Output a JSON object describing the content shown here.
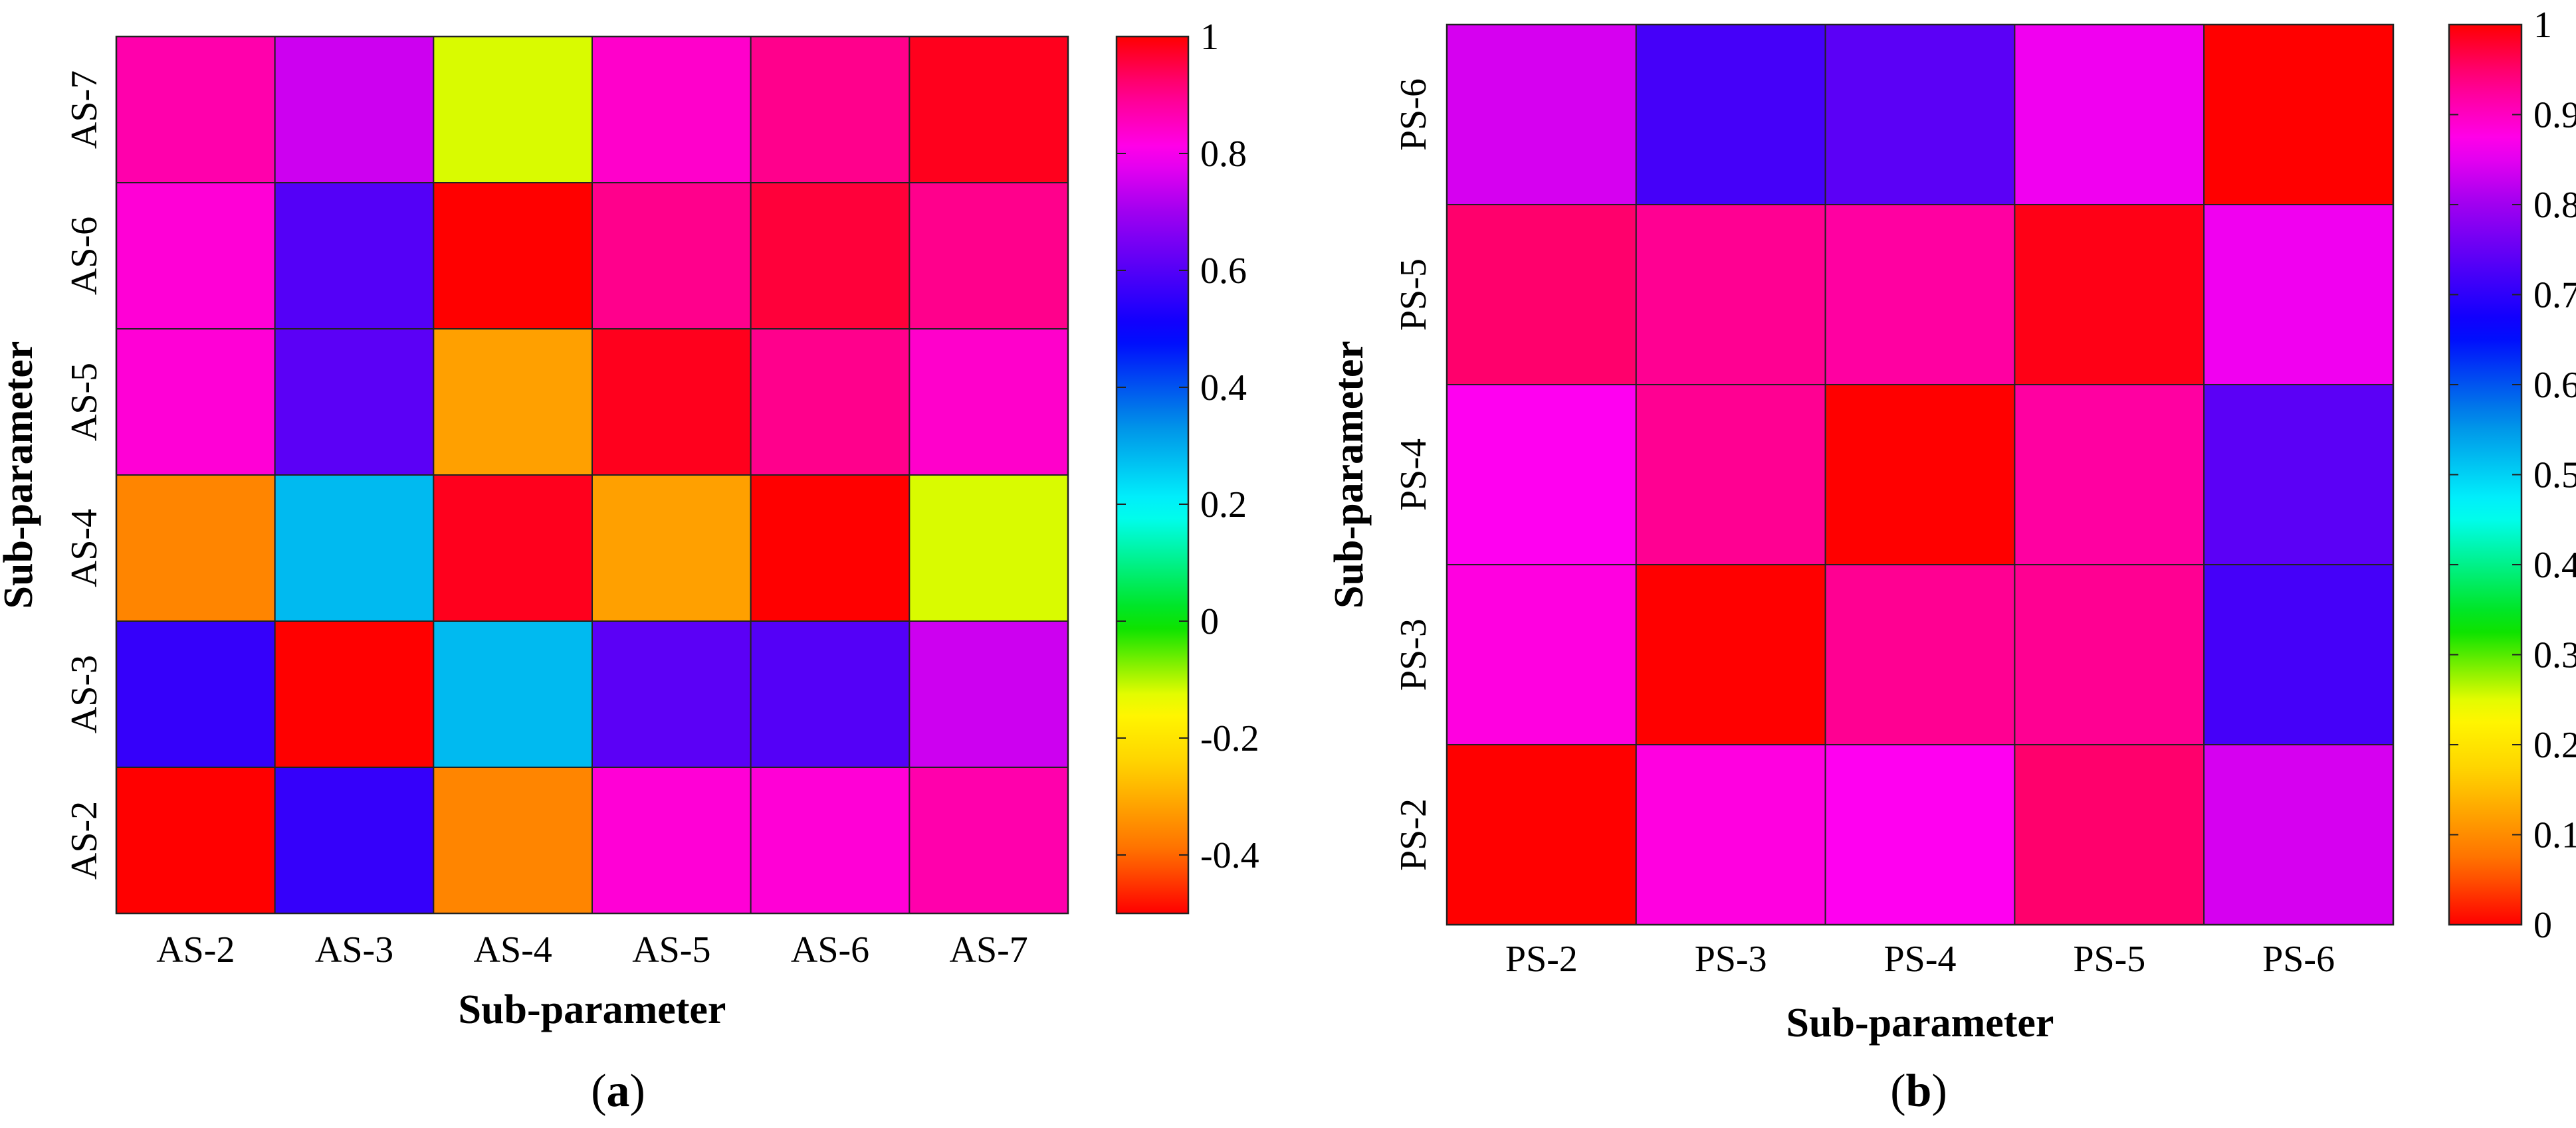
{
  "chart_data": [
    {
      "type": "heatmap",
      "panel_label": "a",
      "xlabel": "Sub-parameter",
      "ylabel": "Sub-parameter",
      "x_categories": [
        "AS-2",
        "AS-3",
        "AS-4",
        "AS-5",
        "AS-6",
        "AS-7"
      ],
      "y_categories": [
        "AS-2",
        "AS-3",
        "AS-4",
        "AS-5",
        "AS-6",
        "AS-7"
      ],
      "values": [
        [
          1.0,
          0.56,
          -0.36,
          0.83,
          0.83,
          0.87
        ],
        [
          0.56,
          1.0,
          0.28,
          0.61,
          0.6,
          0.75
        ],
        [
          -0.36,
          0.28,
          0.98,
          -0.32,
          1.0,
          -0.12
        ],
        [
          0.83,
          0.61,
          -0.32,
          0.98,
          0.9,
          0.84
        ],
        [
          0.83,
          0.6,
          1.0,
          0.9,
          0.96,
          0.9
        ],
        [
          0.87,
          0.75,
          -0.12,
          0.84,
          0.9,
          0.98
        ]
      ],
      "colorbar": {
        "min": -0.5,
        "max": 1.0,
        "ticks": [
          "1",
          "0.8",
          "0.6",
          "0.4",
          "0.2",
          "0",
          "-0.2",
          "-0.4"
        ],
        "tick_values": [
          1,
          0.8,
          0.6,
          0.4,
          0.2,
          0,
          -0.2,
          -0.4
        ]
      }
    },
    {
      "type": "heatmap",
      "panel_label": "b",
      "xlabel": "Sub-parameter",
      "ylabel": "Sub-parameter",
      "x_categories": [
        "PS-2",
        "PS-3",
        "PS-4",
        "PS-5",
        "PS-6"
      ],
      "y_categories": [
        "PS-2",
        "PS-3",
        "PS-4",
        "PS-5",
        "PS-6"
      ],
      "values": [
        [
          1.0,
          0.88,
          0.87,
          0.95,
          0.84
        ],
        [
          0.88,
          1.0,
          0.93,
          0.93,
          0.72
        ],
        [
          0.87,
          0.93,
          1.0,
          0.92,
          0.74
        ],
        [
          0.95,
          0.93,
          0.92,
          0.99,
          0.86
        ],
        [
          0.84,
          0.72,
          0.74,
          0.86,
          1.0
        ]
      ],
      "colorbar": {
        "min": 0,
        "max": 1.0,
        "ticks": [
          "1",
          "0.9",
          "0.8",
          "0.7",
          "0.6",
          "0.5",
          "0.4",
          "0.3",
          "0.2",
          "0.1",
          "0"
        ],
        "tick_values": [
          1,
          0.9,
          0.8,
          0.7,
          0.6,
          0.5,
          0.4,
          0.3,
          0.2,
          0.1,
          0
        ]
      }
    }
  ]
}
